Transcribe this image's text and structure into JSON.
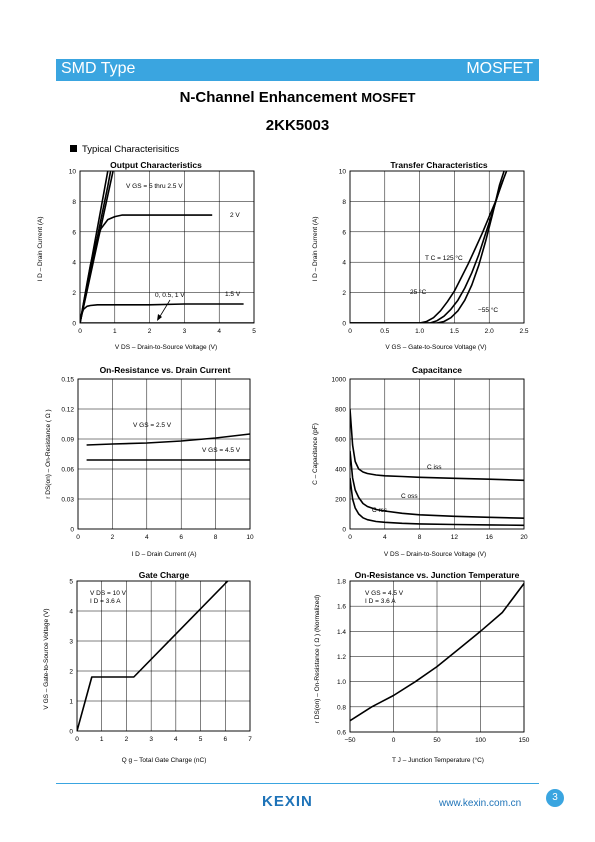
{
  "header": {
    "left": "SMD Type",
    "right": "MOSFET"
  },
  "title": {
    "prefix": "N-Channel Enhancement",
    "suffix": "MOSFET"
  },
  "part_number": "2KK5003",
  "section": "Typical  Characterisitics",
  "footer": {
    "logo": "KEXIN",
    "url": "www.kexin.com.cn",
    "page": "3"
  },
  "chart_data": [
    {
      "id": "output",
      "type": "line",
      "title": "Output Characteristics",
      "xlabel": "V DS  –  Drain-to-Source Voltage (V)",
      "ylabel": "I D  –  Drain Current (A)",
      "xlim": [
        0,
        5
      ],
      "ylim": [
        0,
        10
      ],
      "xticks": [
        "0",
        "1",
        "2",
        "3",
        "4",
        "5"
      ],
      "yticks": [
        "0",
        "2",
        "4",
        "6",
        "8",
        "10"
      ],
      "annotations": [
        "V GS = 5 thru 2.5 V",
        "2 V",
        "0, 0.5, 1 V",
        "1.5 V"
      ],
      "series": [
        {
          "name": "V GS = 5 thru 2.5 V",
          "x": [
            0,
            0.2,
            0.4,
            0.6,
            0.8,
            0.95
          ],
          "y": [
            0,
            2.1,
            4.2,
            6.3,
            8.4,
            10
          ]
        },
        {
          "name": "V GS = 5 thru 2.5 V",
          "x": [
            0,
            0.2,
            0.4,
            0.6,
            0.8,
            0.88
          ],
          "y": [
            0,
            2.2,
            4.5,
            6.8,
            9.0,
            10
          ]
        },
        {
          "name": "V GS = 5 thru 2.5 V",
          "x": [
            0,
            0.2,
            0.4,
            0.6,
            0.8
          ],
          "y": [
            0,
            2.5,
            5,
            7.5,
            10
          ]
        },
        {
          "name": "2 V",
          "x": [
            0,
            0.1,
            0.2,
            0.3,
            0.4,
            0.5,
            0.6,
            0.8,
            1.0,
            1.2,
            1.5,
            2.0,
            3.0,
            3.8
          ],
          "y": [
            0,
            1.3,
            2.6,
            3.8,
            4.8,
            5.6,
            6.2,
            6.8,
            7.0,
            7.1,
            7.1,
            7.1,
            7.1,
            7.1
          ]
        },
        {
          "name": "1.5 V",
          "x": [
            0,
            0.05,
            0.1,
            0.2,
            0.3,
            0.5,
            1.0,
            2.0,
            3.0,
            4.0,
            4.7
          ],
          "y": [
            0,
            0.6,
            0.9,
            1.1,
            1.15,
            1.2,
            1.2,
            1.2,
            1.25,
            1.25,
            1.25
          ]
        },
        {
          "name": "0, 0.5, 1 V",
          "x": [
            0,
            5
          ],
          "y": [
            0,
            0
          ]
        }
      ]
    },
    {
      "id": "transfer",
      "type": "line",
      "title": "Transfer Characteristics",
      "xlabel": "V GS  –  Gate-to-Source Voltage (V)",
      "ylabel": "I D  –  Drain Current (A)",
      "xlim": [
        0,
        2.5
      ],
      "ylim": [
        0,
        10
      ],
      "xticks": [
        "0",
        "0.5",
        "1.0",
        "1.5",
        "2.0",
        "2.5"
      ],
      "yticks": [
        "0",
        "2",
        "4",
        "6",
        "8",
        "10"
      ],
      "annotations": [
        "T C = 125 °C",
        "25 °C",
        "−55 °C"
      ],
      "series": [
        {
          "name": "T C = 125 °C",
          "x": [
            0,
            1.0,
            1.1,
            1.2,
            1.3,
            1.4,
            1.5,
            1.6,
            1.7,
            1.8,
            1.9,
            2.0,
            2.1,
            2.2
          ],
          "y": [
            0,
            0,
            0.1,
            0.35,
            0.8,
            1.4,
            2.1,
            3.0,
            3.9,
            4.9,
            5.9,
            7.0,
            8.1,
            9.4
          ]
        },
        {
          "name": "25 °C",
          "x": [
            0,
            1.15,
            1.25,
            1.35,
            1.45,
            1.55,
            1.65,
            1.75,
            1.85,
            1.95,
            2.05,
            2.15,
            2.25
          ],
          "y": [
            0,
            0,
            0.15,
            0.45,
            0.9,
            1.5,
            2.3,
            3.3,
            4.5,
            5.9,
            7.3,
            8.8,
            10
          ]
        },
        {
          "name": "−55 °C",
          "x": [
            0,
            1.25,
            1.35,
            1.45,
            1.55,
            1.65,
            1.75,
            1.85,
            1.95,
            2.05,
            2.15,
            2.25
          ],
          "y": [
            0,
            0,
            0.1,
            0.35,
            0.8,
            1.5,
            2.5,
            3.8,
            5.4,
            7.2,
            9.1,
            10.5
          ]
        }
      ]
    },
    {
      "id": "onres",
      "type": "line",
      "title": "On-Resistance vs. Drain Current",
      "xlabel": "I D  –  Drain Current (A)",
      "ylabel": "r DS(on)  –  On-Resistance ( Ω )",
      "xlim": [
        0,
        10
      ],
      "ylim": [
        0,
        0.15
      ],
      "xticks": [
        "0",
        "2",
        "4",
        "6",
        "8",
        "10"
      ],
      "yticks": [
        "0",
        "0.03",
        "0.06",
        "0.09",
        "0.12",
        "0.15"
      ],
      "annotations": [
        "V GS = 2.5 V",
        "V GS = 4.5 V"
      ],
      "series": [
        {
          "name": "V GS = 2.5 V",
          "x": [
            0.5,
            2,
            4,
            6,
            8,
            10
          ],
          "y": [
            0.084,
            0.085,
            0.086,
            0.088,
            0.091,
            0.095
          ]
        },
        {
          "name": "V GS = 4.5 V",
          "x": [
            0.5,
            2,
            4,
            6,
            8,
            10
          ],
          "y": [
            0.069,
            0.069,
            0.069,
            0.069,
            0.069,
            0.069
          ]
        }
      ]
    },
    {
      "id": "cap",
      "type": "line",
      "title": "Capacitance",
      "xlabel": "V DS  –  Drain-to-Source Voltage (V)",
      "ylabel": "C  –  Capacitance (pF)",
      "xlim": [
        0,
        20
      ],
      "ylim": [
        0,
        1000
      ],
      "xticks": [
        "0",
        "4",
        "8",
        "12",
        "16",
        "20"
      ],
      "yticks": [
        "0",
        "200",
        "400",
        "600",
        "800",
        "1000"
      ],
      "annotations": [
        "C iss",
        "C oss",
        "C rss"
      ],
      "series": [
        {
          "name": "C iss",
          "x": [
            0,
            0.3,
            0.6,
            1,
            1.5,
            2,
            3,
            4,
            6,
            8,
            12,
            16,
            20
          ],
          "y": [
            800,
            560,
            450,
            400,
            380,
            370,
            360,
            355,
            350,
            345,
            338,
            332,
            325
          ]
        },
        {
          "name": "C oss",
          "x": [
            0,
            0.3,
            0.6,
            1,
            1.5,
            2,
            3,
            4,
            6,
            8,
            12,
            16,
            20
          ],
          "y": [
            520,
            340,
            260,
            210,
            170,
            150,
            130,
            120,
            105,
            95,
            85,
            78,
            72
          ]
        },
        {
          "name": "C rss",
          "x": [
            0,
            0.3,
            0.6,
            1,
            1.5,
            2,
            3,
            4,
            6,
            8,
            12,
            16,
            20
          ],
          "y": [
            340,
            200,
            140,
            100,
            75,
            62,
            50,
            45,
            38,
            34,
            30,
            27,
            25
          ]
        }
      ]
    },
    {
      "id": "gate",
      "type": "line",
      "title": "Gate Charge",
      "xlabel": "Q g  –  Total Gate Charge (nC)",
      "ylabel": "V GS  –  Gate-to-Source Voltage (V)",
      "xlim": [
        0,
        7
      ],
      "ylim": [
        0,
        5
      ],
      "xticks": [
        "0",
        "1",
        "2",
        "3",
        "4",
        "5",
        "6",
        "7"
      ],
      "yticks": [
        "0",
        "1",
        "2",
        "3",
        "4",
        "5"
      ],
      "annotations": [
        "V DS = 10 V",
        "I D = 3.6 A"
      ],
      "series": [
        {
          "name": "",
          "x": [
            0,
            0.6,
            2.3,
            6.1
          ],
          "y": [
            0,
            1.8,
            1.8,
            5
          ]
        }
      ]
    },
    {
      "id": "tempres",
      "type": "line",
      "title": "On-Resistance vs. Junction Temperature",
      "xlabel": "T J  –  Junction Temperature (°C)",
      "ylabel": "r DS(on)  –  On-Resistance ( Ω ) (Normalized)",
      "xlim": [
        -50,
        150
      ],
      "ylim": [
        0.6,
        1.8
      ],
      "xticks": [
        "−50",
        "0",
        "50",
        "100",
        "150"
      ],
      "yticks": [
        "0.6",
        "0.8",
        "1.0",
        "1.2",
        "1.4",
        "1.6",
        "1.8"
      ],
      "annotations": [
        "V GS = 4.5 V",
        "I D = 3.6 A"
      ],
      "series": [
        {
          "name": "",
          "x": [
            -50,
            -25,
            0,
            25,
            50,
            75,
            100,
            125,
            150
          ],
          "y": [
            0.69,
            0.8,
            0.89,
            1.0,
            1.12,
            1.26,
            1.4,
            1.55,
            1.78
          ]
        }
      ]
    }
  ]
}
